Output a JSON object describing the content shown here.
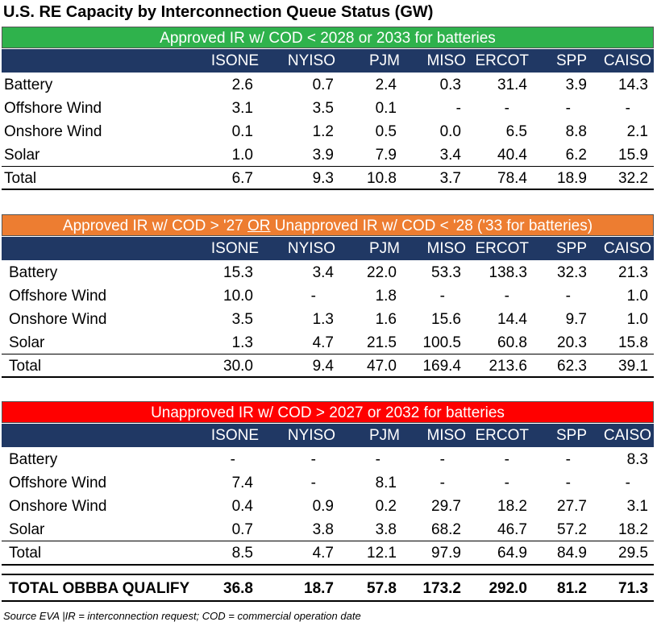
{
  "title": "U.S. RE Capacity by Interconnection Queue Status (GW)",
  "columns": [
    "ISONE",
    "NYISO",
    "PJM",
    "MISO",
    "ERCOT",
    "SPP",
    "CAISO"
  ],
  "colors": {
    "green": "#2fb24c",
    "orange": "#ed7d31",
    "red": "#ff0000",
    "header": "#203864"
  },
  "sections": [
    {
      "banner": {
        "a": "Approved IR w/ COD < 2028 or 2033 for batteries",
        "b": "",
        "c": ""
      },
      "rows": [
        {
          "label": "Battery",
          "values": [
            "2.6",
            "0.7",
            "2.4",
            "0.3",
            "31.4",
            "3.9",
            "14.3"
          ]
        },
        {
          "label": "Offshore Wind",
          "values": [
            "3.1",
            "3.5",
            "0.1",
            "-",
            "-",
            "-",
            "-"
          ]
        },
        {
          "label": "Onshore Wind",
          "values": [
            "0.1",
            "1.2",
            "0.5",
            "0.0",
            "6.5",
            "8.8",
            "2.1"
          ]
        },
        {
          "label": "Solar",
          "values": [
            "1.0",
            "3.9",
            "7.9",
            "3.4",
            "40.4",
            "6.2",
            "15.9"
          ]
        }
      ],
      "total": {
        "label": "Total",
        "values": [
          "6.7",
          "9.3",
          "10.8",
          "3.7",
          "78.4",
          "18.9",
          "32.2"
        ]
      }
    },
    {
      "banner": {
        "a": "Approved IR w/ COD > '27 ",
        "b": "OR",
        "c": " Unapproved IR w/ COD < '28 ('33 for batteries)"
      },
      "rows": [
        {
          "label": "Battery",
          "values": [
            "15.3",
            "3.4",
            "22.0",
            "53.3",
            "138.3",
            "32.3",
            "21.3"
          ]
        },
        {
          "label": "Offshore Wind",
          "values": [
            "10.0",
            "-",
            "1.8",
            "-",
            "-",
            "-",
            "1.0"
          ]
        },
        {
          "label": "Onshore Wind",
          "values": [
            "3.5",
            "1.3",
            "1.6",
            "15.6",
            "14.4",
            "9.7",
            "1.0"
          ]
        },
        {
          "label": "Solar",
          "values": [
            "1.3",
            "4.7",
            "21.5",
            "100.5",
            "60.8",
            "20.3",
            "15.8"
          ]
        }
      ],
      "total": {
        "label": "Total",
        "values": [
          "30.0",
          "9.4",
          "47.0",
          "169.4",
          "213.6",
          "62.3",
          "39.1"
        ]
      }
    },
    {
      "banner": {
        "a": "Unapproved IR w/ COD > 2027 or 2032 for batteries",
        "b": "",
        "c": ""
      },
      "rows": [
        {
          "label": "Battery",
          "values": [
            "-",
            "-",
            "-",
            "-",
            "-",
            "-",
            "8.3"
          ]
        },
        {
          "label": "Offshore Wind",
          "values": [
            "7.4",
            "-",
            "8.1",
            "-",
            "-",
            "-",
            "-"
          ]
        },
        {
          "label": "Onshore Wind",
          "values": [
            "0.4",
            "0.9",
            "0.2",
            "29.7",
            "18.2",
            "27.7",
            "3.1"
          ]
        },
        {
          "label": "Solar",
          "values": [
            "0.7",
            "3.8",
            "3.8",
            "68.2",
            "46.7",
            "57.2",
            "18.2"
          ]
        }
      ],
      "total": {
        "label": "Total",
        "values": [
          "8.5",
          "4.7",
          "12.1",
          "97.9",
          "64.9",
          "84.9",
          "29.5"
        ]
      }
    }
  ],
  "grand_total": {
    "label": "TOTAL OBBBA QUALIFY",
    "values": [
      "36.8",
      "18.7",
      "57.8",
      "173.2",
      "292.0",
      "81.2",
      "71.3"
    ]
  },
  "source": "Source EVA |IR = interconnection request; COD = commercial operation date",
  "chart_data": {
    "type": "table",
    "title": "U.S. RE Capacity by Interconnection Queue Status (GW)",
    "columns": [
      "ISONE",
      "NYISO",
      "PJM",
      "MISO",
      "ERCOT",
      "SPP",
      "CAISO"
    ],
    "tables": [
      {
        "heading": "Approved IR w/ COD < 2028 or 2033 for batteries",
        "rows": {
          "Battery": [
            "2.6",
            "0.7",
            "2.4",
            "0.3",
            "31.4",
            "3.9",
            "14.3"
          ],
          "Offshore Wind": [
            "3.1",
            "3.5",
            "0.1",
            "-",
            "-",
            "-",
            "-"
          ],
          "Onshore Wind": [
            "0.1",
            "1.2",
            "0.5",
            "0.0",
            "6.5",
            "8.8",
            "2.1"
          ],
          "Solar": [
            "1.0",
            "3.9",
            "7.9",
            "3.4",
            "40.4",
            "6.2",
            "15.9"
          ],
          "Total": [
            "6.7",
            "9.3",
            "10.8",
            "3.7",
            "78.4",
            "18.9",
            "32.2"
          ]
        }
      },
      {
        "heading": "Approved IR w/ COD > '27 OR Unapproved IR w/ COD < '28 ('33 for batteries)",
        "rows": {
          "Battery": [
            "15.3",
            "3.4",
            "22.0",
            "53.3",
            "138.3",
            "32.3",
            "21.3"
          ],
          "Offshore Wind": [
            "10.0",
            "-",
            "1.8",
            "-",
            "-",
            "-",
            "1.0"
          ],
          "Onshore Wind": [
            "3.5",
            "1.3",
            "1.6",
            "15.6",
            "14.4",
            "9.7",
            "1.0"
          ],
          "Solar": [
            "1.3",
            "4.7",
            "21.5",
            "100.5",
            "60.8",
            "20.3",
            "15.8"
          ],
          "Total": [
            "30.0",
            "9.4",
            "47.0",
            "169.4",
            "213.6",
            "62.3",
            "39.1"
          ]
        }
      },
      {
        "heading": "Unapproved IR w/ COD > 2027 or 2032 for batteries",
        "rows": {
          "Battery": [
            "-",
            "-",
            "-",
            "-",
            "-",
            "-",
            "8.3"
          ],
          "Offshore Wind": [
            "7.4",
            "-",
            "8.1",
            "-",
            "-",
            "-",
            "-"
          ],
          "Onshore Wind": [
            "0.4",
            "0.9",
            "0.2",
            "29.7",
            "18.2",
            "27.7",
            "3.1"
          ],
          "Solar": [
            "0.7",
            "3.8",
            "3.8",
            "68.2",
            "46.7",
            "57.2",
            "18.2"
          ],
          "Total": [
            "8.5",
            "4.7",
            "12.1",
            "97.9",
            "64.9",
            "84.9",
            "29.5"
          ]
        }
      }
    ],
    "grand_total": {
      "TOTAL OBBBA QUALIFY": [
        "36.8",
        "18.7",
        "57.8",
        "173.2",
        "292.0",
        "81.2",
        "71.3"
      ]
    }
  }
}
